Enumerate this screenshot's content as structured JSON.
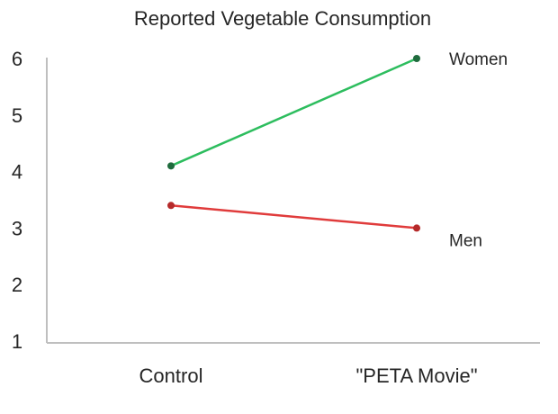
{
  "chart_data": {
    "type": "line",
    "title": "Reported Vegetable Consumption",
    "xlabel": "",
    "ylabel": "",
    "categories": [
      "Control",
      "\"PETA Movie\""
    ],
    "ylim": [
      1,
      6
    ],
    "yticks": [
      "1",
      "2",
      "3",
      "4",
      "5",
      "6"
    ],
    "grid": false,
    "legend": "direct labels at line ends",
    "series": [
      {
        "name": "Women",
        "values": [
          4.1,
          6.0
        ],
        "color": "#2dbd5e",
        "marker_color": "#1f6b3d"
      },
      {
        "name": "Men",
        "values": [
          3.4,
          3.0
        ],
        "color": "#e03b3b",
        "marker_color": "#b52a2a"
      }
    ]
  }
}
